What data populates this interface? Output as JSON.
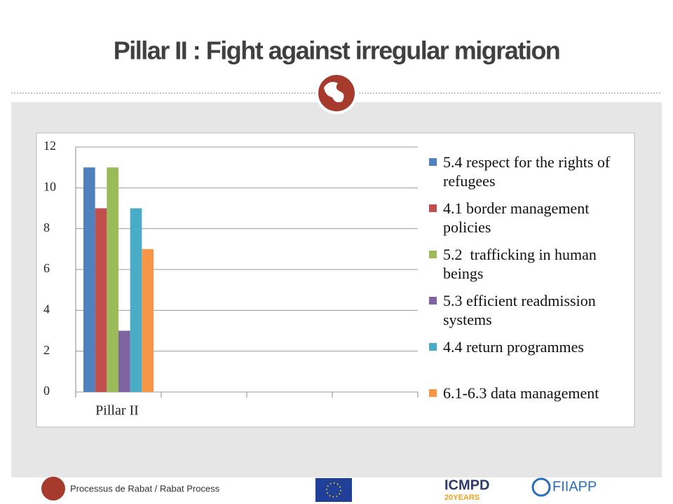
{
  "title": "Pillar II : Fight against irregular migration",
  "footer": {
    "text": "Processus de Rabat / Rabat Process",
    "logos": [
      "ICMPD",
      "20YEARS",
      "FIIAPP"
    ]
  },
  "chart_data": {
    "type": "bar",
    "categories": [
      "Pillar II",
      null,
      null,
      null
    ],
    "series": [
      {
        "name": "5.4 respect for the rights of refugees",
        "color": "#4f81bd",
        "values": [
          11,
          null,
          null,
          null
        ]
      },
      {
        "name": "4.1 border management policies",
        "color": "#c0504d",
        "values": [
          9,
          null,
          null,
          null
        ]
      },
      {
        "name": "5.2  trafficking in human beings",
        "color": "#9bbb59",
        "values": [
          11,
          null,
          null,
          null
        ]
      },
      {
        "name": "5.3 efficient readmission systems",
        "color": "#8064a2",
        "values": [
          3,
          null,
          null,
          null
        ]
      },
      {
        "name": "4.4 return programmes",
        "color": "#4bacc6",
        "values": [
          9,
          null,
          null,
          null
        ]
      },
      {
        "name": "6.1-6.3 data management",
        "color": "#f79646",
        "values": [
          7,
          null,
          null,
          null
        ]
      }
    ],
    "ylim": [
      0,
      12
    ],
    "yticks": [
      0,
      2,
      4,
      6,
      8,
      10,
      12
    ],
    "grid": true,
    "legend": "right"
  }
}
